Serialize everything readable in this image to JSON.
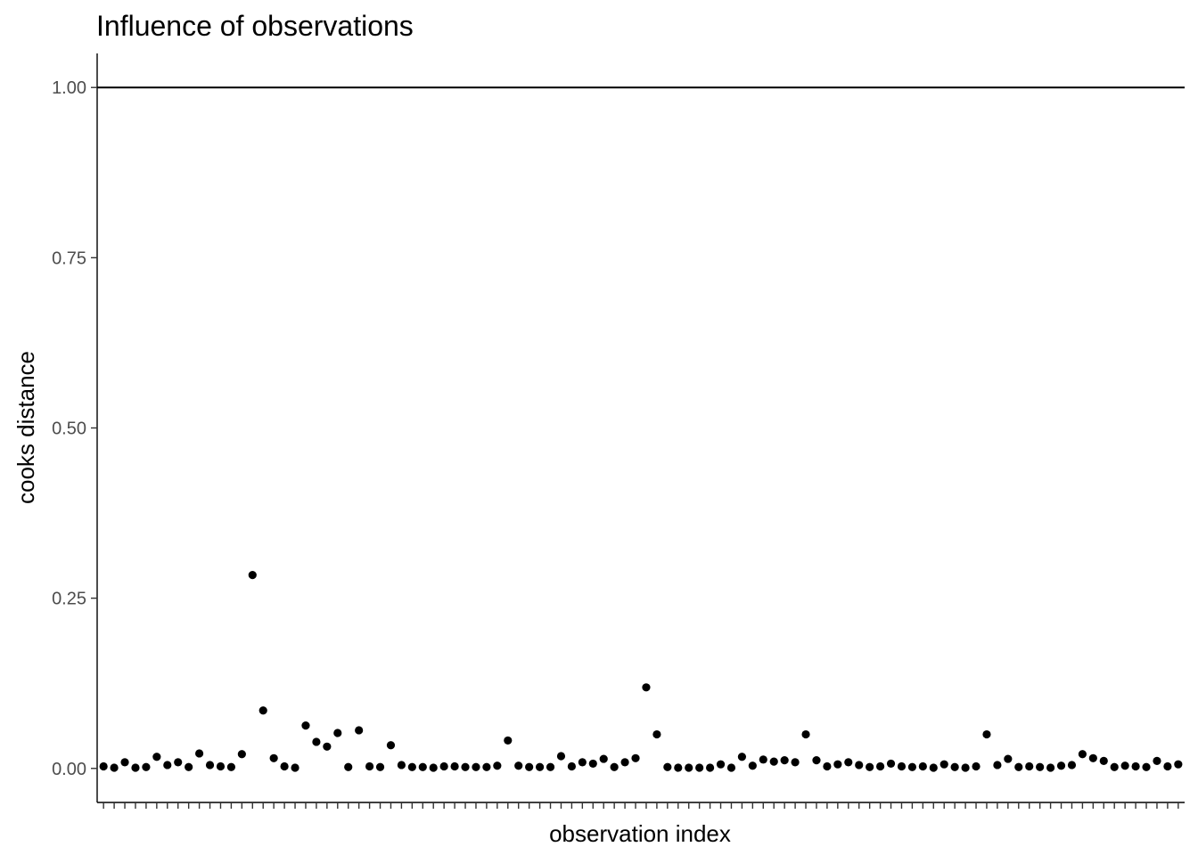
{
  "chart_data": {
    "type": "scatter",
    "title": "Influence of observations",
    "xlabel": "observation index",
    "ylabel": "cooks distance",
    "ylim": [
      -0.05,
      1.05
    ],
    "yticks": [
      0.0,
      0.25,
      0.5,
      0.75,
      1.0
    ],
    "ytick_labels": [
      "0.00",
      "0.25",
      "0.50",
      "0.75",
      "1.00"
    ],
    "x_tick_labels_shown": false,
    "grid": false,
    "reference_line": {
      "y": 1.0,
      "color": "#000000"
    },
    "point_color": "#000000",
    "x": [
      1,
      2,
      3,
      4,
      5,
      6,
      7,
      8,
      9,
      10,
      11,
      12,
      13,
      14,
      15,
      16,
      17,
      18,
      19,
      20,
      21,
      22,
      23,
      24,
      25,
      26,
      27,
      28,
      29,
      30,
      31,
      32,
      33,
      34,
      35,
      36,
      37,
      38,
      39,
      40,
      41,
      42,
      43,
      44,
      45,
      46,
      47,
      48,
      49,
      50,
      51,
      52,
      53,
      54,
      55,
      56,
      57,
      58,
      59,
      60,
      61,
      62,
      63,
      64,
      65,
      66,
      67,
      68,
      69,
      70,
      71,
      72,
      73,
      74,
      75,
      76,
      77,
      78,
      79,
      80,
      81,
      82,
      83,
      84,
      85,
      86,
      87,
      88,
      89,
      90,
      91,
      92,
      93,
      94,
      95,
      96,
      97,
      98,
      99,
      100,
      101,
      102
    ],
    "values": [
      0.003,
      0.001,
      0.009,
      0.001,
      0.002,
      0.017,
      0.005,
      0.009,
      0.002,
      0.022,
      0.005,
      0.003,
      0.002,
      0.021,
      0.284,
      0.085,
      0.015,
      0.003,
      0.001,
      0.063,
      0.039,
      0.032,
      0.052,
      0.002,
      0.056,
      0.003,
      0.002,
      0.034,
      0.005,
      0.002,
      0.002,
      0.001,
      0.003,
      0.003,
      0.002,
      0.002,
      0.002,
      0.004,
      0.041,
      0.004,
      0.002,
      0.002,
      0.002,
      0.018,
      0.003,
      0.009,
      0.007,
      0.014,
      0.002,
      0.009,
      0.015,
      0.119,
      0.05,
      0.002,
      0.001,
      0.001,
      0.001,
      0.001,
      0.006,
      0.001,
      0.017,
      0.004,
      0.013,
      0.01,
      0.012,
      0.009,
      0.05,
      0.012,
      0.003,
      0.006,
      0.009,
      0.005,
      0.002,
      0.003,
      0.007,
      0.003,
      0.002,
      0.003,
      0.001,
      0.006,
      0.002,
      0.001,
      0.003,
      0.05,
      0.005,
      0.014,
      0.002,
      0.003,
      0.002,
      0.001,
      0.004,
      0.005,
      0.021,
      0.015,
      0.011,
      0.002,
      0.004,
      0.003,
      0.002,
      0.011,
      0.003,
      0.006
    ]
  }
}
